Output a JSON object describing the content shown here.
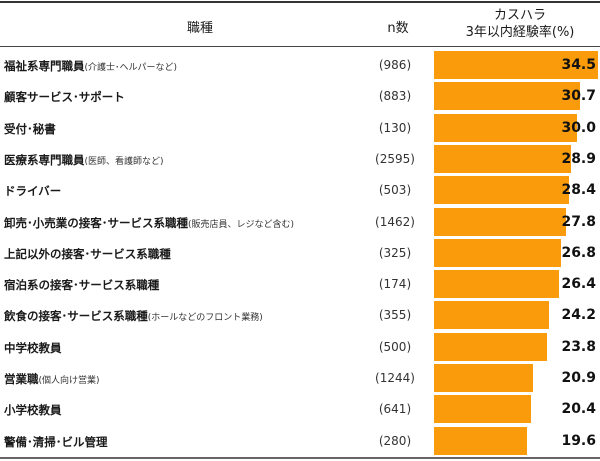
{
  "header": {
    "job": "職種",
    "n": "n数",
    "rate_line1": "カスハラ",
    "rate_line2": "3年以内経験率(%)"
  },
  "chart_data": {
    "type": "bar",
    "orientation": "horizontal",
    "xlim": [
      0,
      34.5
    ],
    "colors": {
      "bar": "#f99b0a"
    },
    "rows": [
      {
        "label": "福祉系専門職員",
        "sub": "(介護士･ヘルパーなど)",
        "n": "(986)",
        "value": 34.5
      },
      {
        "label": "顧客サービス･サポート",
        "sub": "",
        "n": "(883)",
        "value": 30.7
      },
      {
        "label": "受付･秘書",
        "sub": "",
        "n": "(130)",
        "value": 30.0
      },
      {
        "label": "医療系専門職員",
        "sub": "(医師、看護師など)",
        "n": "(2595)",
        "value": 28.9
      },
      {
        "label": "ドライバー",
        "sub": "",
        "n": "(503)",
        "value": 28.4
      },
      {
        "label": "卸売･小売業の接客･サービス系職種",
        "sub": "(販売店員、レジなど含む)",
        "n": "(1462)",
        "value": 27.8
      },
      {
        "label": "上記以外の接客･サービス系職種",
        "sub": "",
        "n": "(325)",
        "value": 26.8
      },
      {
        "label": "宿泊系の接客･サービス系職種",
        "sub": "",
        "n": "(174)",
        "value": 26.4
      },
      {
        "label": "飲食の接客･サービス系職種",
        "sub": "(ホールなどのフロント業務)",
        "n": "(355)",
        "value": 24.2
      },
      {
        "label": "中学校教員",
        "sub": "",
        "n": "(500)",
        "value": 23.8
      },
      {
        "label": "営業職",
        "sub": "(個人向け営業)",
        "n": "(1244)",
        "value": 20.9
      },
      {
        "label": "小学校教員",
        "sub": "",
        "n": "(641)",
        "value": 20.4
      },
      {
        "label": "警備･清掃･ビル管理",
        "sub": "",
        "n": "(280)",
        "value": 19.6
      }
    ]
  }
}
